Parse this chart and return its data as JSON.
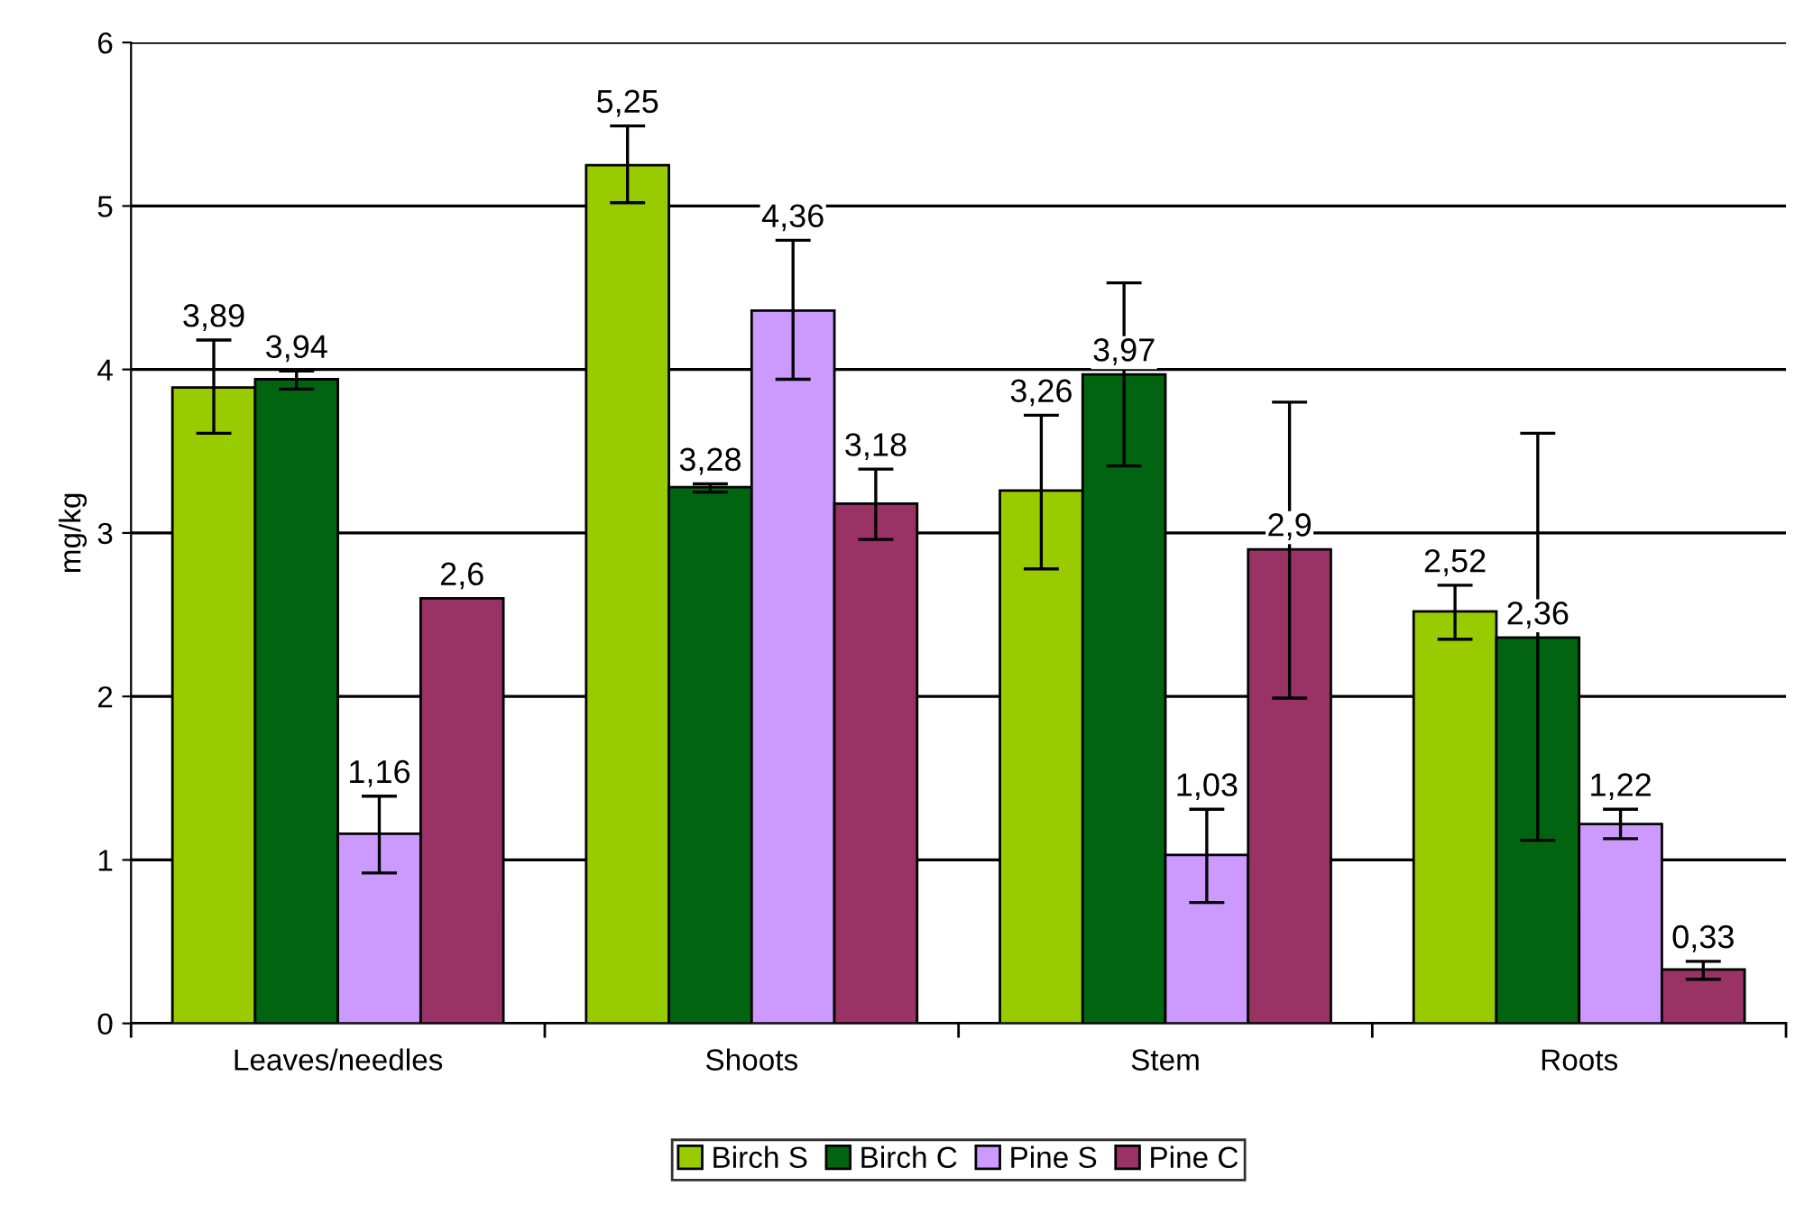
{
  "chart_data": {
    "type": "bar",
    "ylabel": "mg/kg",
    "categories": [
      "Leaves/needles",
      "Shoots",
      "Stem",
      "Roots"
    ],
    "series": [
      {
        "name": "Birch S",
        "color": "#99cc00",
        "values": [
          3.89,
          5.25,
          3.26,
          2.52
        ],
        "value_labels": [
          "3,89",
          "5,25",
          "3,26",
          "2,52"
        ],
        "errors": [
          [
            3.61,
            4.18
          ],
          [
            5.02,
            5.49
          ],
          [
            2.78,
            3.72
          ],
          [
            2.35,
            2.68
          ]
        ]
      },
      {
        "name": "Birch C",
        "color": "#006411",
        "values": [
          3.94,
          3.28,
          3.97,
          2.36
        ],
        "value_labels": [
          "3,94",
          "3,28",
          "3,97",
          "2,36"
        ],
        "errors": [
          [
            3.88,
            3.99
          ],
          [
            3.25,
            3.3
          ],
          [
            3.41,
            4.53
          ],
          [
            1.12,
            3.61
          ]
        ]
      },
      {
        "name": "Pine S",
        "color": "#cc99ff",
        "values": [
          1.16,
          4.36,
          1.03,
          1.22
        ],
        "value_labels": [
          "1,16",
          "4,36",
          "1,03",
          "1,22"
        ],
        "errors": [
          [
            0.92,
            1.39
          ],
          [
            3.94,
            4.79
          ],
          [
            0.74,
            1.31
          ],
          [
            1.13,
            1.31
          ]
        ]
      },
      {
        "name": "Pine C",
        "color": "#993366",
        "values": [
          2.6,
          3.18,
          2.9,
          0.33
        ],
        "value_labels": [
          "2,6",
          "3,18",
          "2,9",
          "0,33"
        ],
        "errors": [
          null,
          [
            2.96,
            3.39
          ],
          [
            1.99,
            3.8
          ],
          [
            0.27,
            0.38
          ]
        ]
      }
    ],
    "ylim": [
      0,
      6
    ],
    "yticks": [
      0,
      1,
      2,
      3,
      4,
      5,
      6
    ],
    "grid": "y",
    "legend": "bottom"
  }
}
